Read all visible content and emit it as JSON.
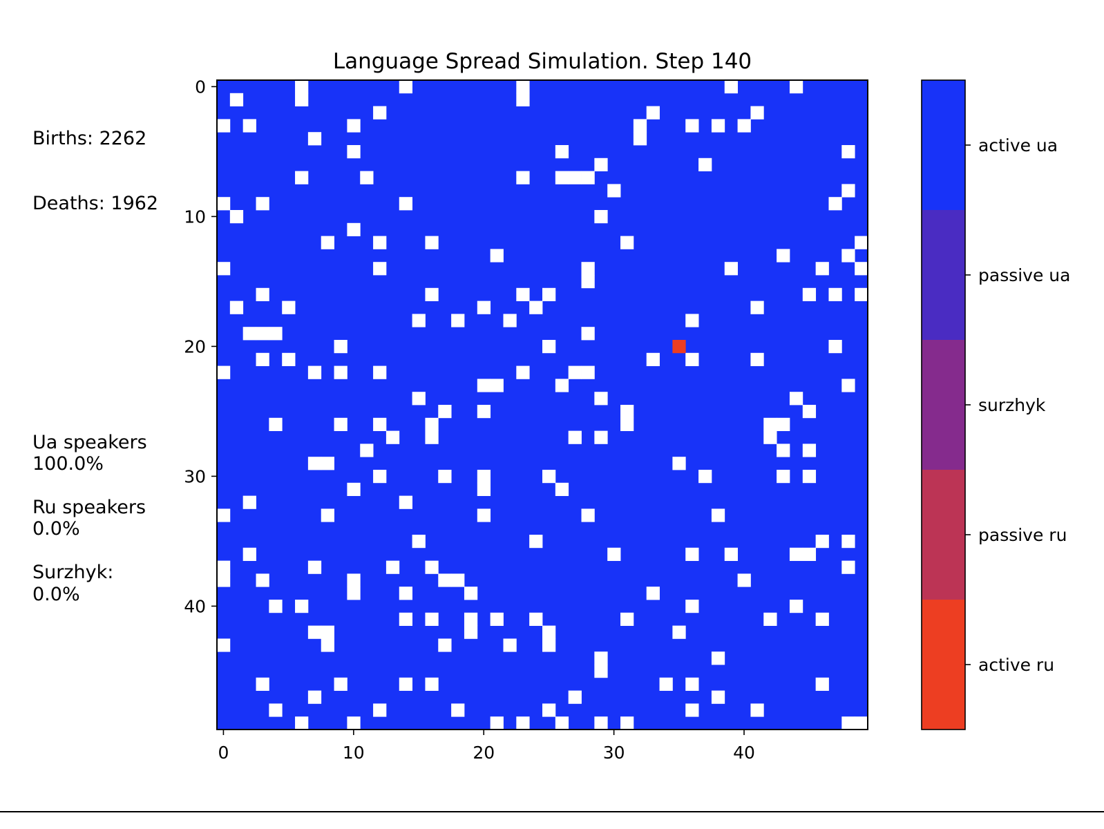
{
  "stats": {
    "births": "Births: 2262",
    "deaths": "Deaths: 1962",
    "ua_speakers_label": "Ua speakers",
    "ua_speakers_value": "100.0%",
    "ru_speakers_label": "Ru speakers",
    "ru_speakers_value": "0.0%",
    "surzhyk_label": "Surzhyk:",
    "surzhyk_value": "0.0%"
  },
  "chart_data": {
    "type": "heatmap",
    "title": "Language Spread Simulation. Step 140",
    "xlabel": "",
    "ylabel": "",
    "grid_size": [
      50,
      50
    ],
    "x_ticks": [
      0,
      10,
      20,
      30,
      40
    ],
    "y_ticks": [
      0,
      10,
      20,
      30,
      40
    ],
    "grid": false,
    "colorbar": {
      "labels": [
        "active ua",
        "passive ua",
        "surzhyk",
        "passive ru",
        "active ru"
      ],
      "colors": [
        "#1833f8",
        "#4a2cc2",
        "#852b8d",
        "#bc3455",
        "#ed3e22"
      ]
    },
    "empty_color": "#ffffff",
    "base_state": "active ua",
    "empty_cells": [
      [
        0,
        6
      ],
      [
        0,
        14
      ],
      [
        0,
        23
      ],
      [
        0,
        39
      ],
      [
        0,
        44
      ],
      [
        1,
        1
      ],
      [
        1,
        6
      ],
      [
        1,
        23
      ],
      [
        2,
        12
      ],
      [
        2,
        33
      ],
      [
        2,
        41
      ],
      [
        3,
        0
      ],
      [
        3,
        2
      ],
      [
        3,
        10
      ],
      [
        3,
        32
      ],
      [
        3,
        36
      ],
      [
        3,
        38
      ],
      [
        3,
        40
      ],
      [
        4,
        7
      ],
      [
        4,
        32
      ],
      [
        5,
        10
      ],
      [
        5,
        26
      ],
      [
        5,
        48
      ],
      [
        6,
        29
      ],
      [
        6,
        37
      ],
      [
        7,
        6
      ],
      [
        7,
        11
      ],
      [
        7,
        23
      ],
      [
        7,
        26
      ],
      [
        7,
        27
      ],
      [
        7,
        28
      ],
      [
        8,
        30
      ],
      [
        8,
        48
      ],
      [
        9,
        0
      ],
      [
        9,
        3
      ],
      [
        9,
        14
      ],
      [
        9,
        47
      ],
      [
        10,
        1
      ],
      [
        10,
        29
      ],
      [
        11,
        10
      ],
      [
        12,
        8
      ],
      [
        12,
        12
      ],
      [
        12,
        16
      ],
      [
        12,
        31
      ],
      [
        12,
        49
      ],
      [
        13,
        21
      ],
      [
        13,
        43
      ],
      [
        13,
        48
      ],
      [
        14,
        0
      ],
      [
        14,
        12
      ],
      [
        14,
        28
      ],
      [
        14,
        39
      ],
      [
        14,
        46
      ],
      [
        14,
        49
      ],
      [
        15,
        28
      ],
      [
        16,
        3
      ],
      [
        16,
        16
      ],
      [
        16,
        23
      ],
      [
        16,
        25
      ],
      [
        16,
        45
      ],
      [
        16,
        47
      ],
      [
        16,
        49
      ],
      [
        17,
        1
      ],
      [
        17,
        5
      ],
      [
        17,
        20
      ],
      [
        17,
        24
      ],
      [
        17,
        41
      ],
      [
        18,
        15
      ],
      [
        18,
        18
      ],
      [
        18,
        22
      ],
      [
        18,
        36
      ],
      [
        19,
        2
      ],
      [
        19,
        3
      ],
      [
        19,
        4
      ],
      [
        19,
        28
      ],
      [
        20,
        9
      ],
      [
        20,
        25
      ],
      [
        20,
        47
      ],
      [
        21,
        3
      ],
      [
        21,
        5
      ],
      [
        21,
        33
      ],
      [
        21,
        36
      ],
      [
        21,
        41
      ],
      [
        22,
        0
      ],
      [
        22,
        7
      ],
      [
        22,
        9
      ],
      [
        22,
        12
      ],
      [
        22,
        23
      ],
      [
        22,
        27
      ],
      [
        22,
        28
      ],
      [
        23,
        20
      ],
      [
        23,
        21
      ],
      [
        23,
        26
      ],
      [
        23,
        48
      ],
      [
        24,
        15
      ],
      [
        24,
        29
      ],
      [
        24,
        44
      ],
      [
        25,
        17
      ],
      [
        25,
        20
      ],
      [
        25,
        31
      ],
      [
        25,
        45
      ],
      [
        26,
        4
      ],
      [
        26,
        9
      ],
      [
        26,
        12
      ],
      [
        26,
        16
      ],
      [
        26,
        31
      ],
      [
        26,
        42
      ],
      [
        26,
        43
      ],
      [
        27,
        13
      ],
      [
        27,
        16
      ],
      [
        27,
        27
      ],
      [
        27,
        29
      ],
      [
        27,
        42
      ],
      [
        28,
        11
      ],
      [
        28,
        43
      ],
      [
        28,
        45
      ],
      [
        29,
        7
      ],
      [
        29,
        8
      ],
      [
        29,
        35
      ],
      [
        30,
        12
      ],
      [
        30,
        17
      ],
      [
        30,
        20
      ],
      [
        30,
        25
      ],
      [
        30,
        37
      ],
      [
        30,
        43
      ],
      [
        30,
        45
      ],
      [
        31,
        10
      ],
      [
        31,
        20
      ],
      [
        31,
        26
      ],
      [
        32,
        2
      ],
      [
        32,
        14
      ],
      [
        33,
        0
      ],
      [
        33,
        8
      ],
      [
        33,
        20
      ],
      [
        33,
        28
      ],
      [
        33,
        38
      ],
      [
        35,
        15
      ],
      [
        35,
        24
      ],
      [
        35,
        46
      ],
      [
        35,
        48
      ],
      [
        36,
        2
      ],
      [
        36,
        30
      ],
      [
        36,
        36
      ],
      [
        36,
        39
      ],
      [
        36,
        44
      ],
      [
        36,
        45
      ],
      [
        37,
        0
      ],
      [
        37,
        7
      ],
      [
        37,
        13
      ],
      [
        37,
        16
      ],
      [
        37,
        48
      ],
      [
        38,
        0
      ],
      [
        38,
        3
      ],
      [
        38,
        10
      ],
      [
        38,
        17
      ],
      [
        38,
        18
      ],
      [
        38,
        40
      ],
      [
        39,
        10
      ],
      [
        39,
        14
      ],
      [
        39,
        19
      ],
      [
        39,
        33
      ],
      [
        40,
        4
      ],
      [
        40,
        6
      ],
      [
        40,
        36
      ],
      [
        40,
        44
      ],
      [
        41,
        14
      ],
      [
        41,
        16
      ],
      [
        41,
        19
      ],
      [
        41,
        21
      ],
      [
        41,
        24
      ],
      [
        41,
        31
      ],
      [
        41,
        42
      ],
      [
        41,
        46
      ],
      [
        42,
        7
      ],
      [
        42,
        8
      ],
      [
        42,
        19
      ],
      [
        42,
        25
      ],
      [
        42,
        35
      ],
      [
        43,
        0
      ],
      [
        43,
        8
      ],
      [
        43,
        17
      ],
      [
        43,
        22
      ],
      [
        43,
        25
      ],
      [
        44,
        29
      ],
      [
        44,
        38
      ],
      [
        45,
        29
      ],
      [
        46,
        3
      ],
      [
        46,
        9
      ],
      [
        46,
        14
      ],
      [
        46,
        16
      ],
      [
        46,
        34
      ],
      [
        46,
        36
      ],
      [
        46,
        46
      ],
      [
        47,
        7
      ],
      [
        47,
        27
      ],
      [
        47,
        38
      ],
      [
        48,
        4
      ],
      [
        48,
        12
      ],
      [
        48,
        18
      ],
      [
        48,
        25
      ],
      [
        48,
        36
      ],
      [
        48,
        41
      ],
      [
        49,
        6
      ],
      [
        49,
        10
      ],
      [
        49,
        21
      ],
      [
        49,
        23
      ],
      [
        49,
        26
      ],
      [
        49,
        29
      ],
      [
        49,
        31
      ],
      [
        49,
        48
      ],
      [
        49,
        49
      ]
    ],
    "special_cells": [
      {
        "row": 20,
        "col": 35,
        "state": "active ru"
      }
    ]
  }
}
